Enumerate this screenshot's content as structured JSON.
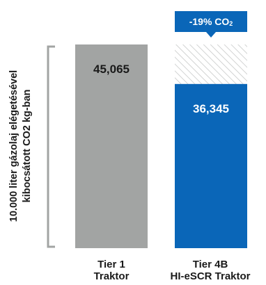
{
  "chart_data": {
    "type": "bar",
    "categories": [
      [
        "Tier 1",
        "Traktor"
      ],
      [
        "Tier 4B",
        "HI-eSCR Traktor"
      ]
    ],
    "values": [
      45065,
      36345
    ],
    "value_labels": [
      "45,065",
      "36,345"
    ],
    "bar_colors": [
      "#a2a4a3",
      "#0a66b8"
    ],
    "reduction_shown_hatched": true,
    "callout": {
      "text": "-19% CO",
      "subscript": "2",
      "color": "#0a66b8"
    },
    "ylabel": [
      "10.000 liter gázolaj elégetésével",
      "kibocsátott CO2 kg-ban"
    ],
    "ylim": [
      0,
      45065
    ],
    "grid": false,
    "legend": "none"
  }
}
